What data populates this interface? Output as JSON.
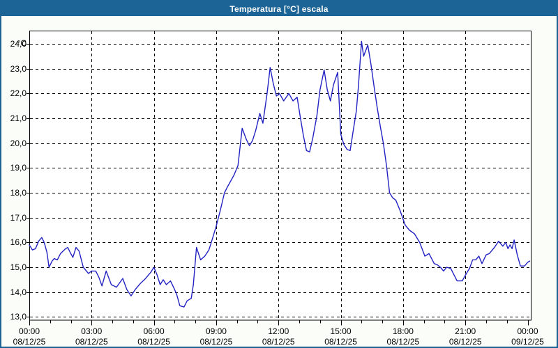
{
  "window": {
    "title": "Temperatura [°C] escala"
  },
  "colors": {
    "titlebar_bg": "#1d6496",
    "titlebar_text": "#ffffff",
    "window_border": "#1d6496",
    "window_bg": "#fbfdf9",
    "plot_bg": "#ffffff",
    "plot_border": "#000000",
    "grid": "#000000",
    "axis_text": "#000000",
    "line": "#2222c3"
  },
  "chart_data": {
    "type": "line",
    "title": "Temperatura [°C] escala",
    "ylabel": "°C",
    "xlabel": "",
    "ylim": [
      13.0,
      24.0
    ],
    "xlim_hours": [
      0,
      24
    ],
    "grid": "dashed",
    "legend": "none",
    "y_ticks": [
      {
        "value": 24.0,
        "label": "24,0"
      },
      {
        "value": 23.0,
        "label": "23,0"
      },
      {
        "value": 22.0,
        "label": "22,0"
      },
      {
        "value": 21.0,
        "label": "21,0"
      },
      {
        "value": 20.0,
        "label": "20,0"
      },
      {
        "value": 19.0,
        "label": "19,0"
      },
      {
        "value": 18.0,
        "label": "18,0"
      },
      {
        "value": 17.0,
        "label": "17,0"
      },
      {
        "value": 16.0,
        "label": "16,0"
      },
      {
        "value": 15.0,
        "label": "15,0"
      },
      {
        "value": 14.0,
        "label": "14,0"
      },
      {
        "value": 13.0,
        "label": "13,0"
      }
    ],
    "x_ticks": [
      {
        "hours": 0,
        "time": "00:00",
        "date": "08/12/25"
      },
      {
        "hours": 3,
        "time": "03:00",
        "date": "08/12/25"
      },
      {
        "hours": 6,
        "time": "06:00",
        "date": "08/12/25"
      },
      {
        "hours": 9,
        "time": "09:00",
        "date": "08/12/25"
      },
      {
        "hours": 12,
        "time": "12:00",
        "date": "08/12/25"
      },
      {
        "hours": 15,
        "time": "15:00",
        "date": "08/12/25"
      },
      {
        "hours": 18,
        "time": "18:00",
        "date": "08/12/25"
      },
      {
        "hours": 21,
        "time": "21:00",
        "date": "08/12/25"
      },
      {
        "hours": 24,
        "time": "00:00",
        "date": "09/12/25"
      }
    ],
    "minor_x_tick_every_hours": 1,
    "series": [
      {
        "name": "Temperatura",
        "unit": "°C",
        "color": "#2222c3",
        "points": [
          [
            0.0,
            15.9
          ],
          [
            0.15,
            15.7
          ],
          [
            0.3,
            15.75
          ],
          [
            0.45,
            16.05
          ],
          [
            0.6,
            16.2
          ],
          [
            0.72,
            16.0
          ],
          [
            0.85,
            15.6
          ],
          [
            0.95,
            15.0
          ],
          [
            1.1,
            15.25
          ],
          [
            1.2,
            15.35
          ],
          [
            1.35,
            15.3
          ],
          [
            1.5,
            15.55
          ],
          [
            1.75,
            15.75
          ],
          [
            1.85,
            15.8
          ],
          [
            2.0,
            15.55
          ],
          [
            2.1,
            15.4
          ],
          [
            2.25,
            15.8
          ],
          [
            2.4,
            15.65
          ],
          [
            2.6,
            15.0
          ],
          [
            2.85,
            14.75
          ],
          [
            3.0,
            14.85
          ],
          [
            3.2,
            14.85
          ],
          [
            3.35,
            14.6
          ],
          [
            3.5,
            14.25
          ],
          [
            3.7,
            14.85
          ],
          [
            3.95,
            14.3
          ],
          [
            4.2,
            14.2
          ],
          [
            4.5,
            14.55
          ],
          [
            4.7,
            14.1
          ],
          [
            4.9,
            13.85
          ],
          [
            5.1,
            14.1
          ],
          [
            5.35,
            14.35
          ],
          [
            5.6,
            14.55
          ],
          [
            5.85,
            14.8
          ],
          [
            6.0,
            15.0
          ],
          [
            6.15,
            14.7
          ],
          [
            6.3,
            14.3
          ],
          [
            6.45,
            14.5
          ],
          [
            6.6,
            14.3
          ],
          [
            6.8,
            14.45
          ],
          [
            7.0,
            14.1
          ],
          [
            7.1,
            13.9
          ],
          [
            7.25,
            13.45
          ],
          [
            7.45,
            13.4
          ],
          [
            7.6,
            13.65
          ],
          [
            7.8,
            13.75
          ],
          [
            7.9,
            14.3
          ],
          [
            7.95,
            14.8
          ],
          [
            8.05,
            15.8
          ],
          [
            8.25,
            15.3
          ],
          [
            8.45,
            15.45
          ],
          [
            8.65,
            15.7
          ],
          [
            8.8,
            16.1
          ],
          [
            9.0,
            16.65
          ],
          [
            9.2,
            17.3
          ],
          [
            9.4,
            18.0
          ],
          [
            9.55,
            18.25
          ],
          [
            9.85,
            18.7
          ],
          [
            10.05,
            19.1
          ],
          [
            10.25,
            20.6
          ],
          [
            10.45,
            20.15
          ],
          [
            10.6,
            19.9
          ],
          [
            10.75,
            20.1
          ],
          [
            10.9,
            20.5
          ],
          [
            11.1,
            21.2
          ],
          [
            11.25,
            20.8
          ],
          [
            11.45,
            22.0
          ],
          [
            11.6,
            23.05
          ],
          [
            11.75,
            22.4
          ],
          [
            11.9,
            21.9
          ],
          [
            12.05,
            22.0
          ],
          [
            12.25,
            21.7
          ],
          [
            12.5,
            22.0
          ],
          [
            12.7,
            21.7
          ],
          [
            12.9,
            21.85
          ],
          [
            13.05,
            21.05
          ],
          [
            13.2,
            20.3
          ],
          [
            13.35,
            19.7
          ],
          [
            13.5,
            19.65
          ],
          [
            13.65,
            20.2
          ],
          [
            13.85,
            21.1
          ],
          [
            14.0,
            22.15
          ],
          [
            14.2,
            22.95
          ],
          [
            14.35,
            22.15
          ],
          [
            14.5,
            21.7
          ],
          [
            14.65,
            22.35
          ],
          [
            14.85,
            22.85
          ],
          [
            15.0,
            20.35
          ],
          [
            15.15,
            19.95
          ],
          [
            15.3,
            19.75
          ],
          [
            15.45,
            19.7
          ],
          [
            15.6,
            20.5
          ],
          [
            15.75,
            21.3
          ],
          [
            15.85,
            22.3
          ],
          [
            16.0,
            24.1
          ],
          [
            16.1,
            23.5
          ],
          [
            16.3,
            23.95
          ],
          [
            16.45,
            23.2
          ],
          [
            16.6,
            22.3
          ],
          [
            16.75,
            21.45
          ],
          [
            16.9,
            20.7
          ],
          [
            17.05,
            20.0
          ],
          [
            17.2,
            19.1
          ],
          [
            17.35,
            18.0
          ],
          [
            17.5,
            17.8
          ],
          [
            17.65,
            17.7
          ],
          [
            17.85,
            17.3
          ],
          [
            18.1,
            16.7
          ],
          [
            18.3,
            16.5
          ],
          [
            18.55,
            16.35
          ],
          [
            18.8,
            16.0
          ],
          [
            19.05,
            15.45
          ],
          [
            19.25,
            15.55
          ],
          [
            19.5,
            15.15
          ],
          [
            19.65,
            15.1
          ],
          [
            19.8,
            15.0
          ],
          [
            19.95,
            14.85
          ],
          [
            20.1,
            15.0
          ],
          [
            20.3,
            14.95
          ],
          [
            20.45,
            14.7
          ],
          [
            20.6,
            14.45
          ],
          [
            20.85,
            14.45
          ],
          [
            21.05,
            14.75
          ],
          [
            21.2,
            14.95
          ],
          [
            21.35,
            15.3
          ],
          [
            21.5,
            15.3
          ],
          [
            21.65,
            15.45
          ],
          [
            21.8,
            15.15
          ],
          [
            22.0,
            15.5
          ],
          [
            22.15,
            15.55
          ],
          [
            22.4,
            15.8
          ],
          [
            22.6,
            16.05
          ],
          [
            22.8,
            15.85
          ],
          [
            22.95,
            16.0
          ],
          [
            23.05,
            15.75
          ],
          [
            23.15,
            15.9
          ],
          [
            23.25,
            15.75
          ],
          [
            23.35,
            16.1
          ],
          [
            23.5,
            15.5
          ],
          [
            23.65,
            15.05
          ],
          [
            23.85,
            15.05
          ],
          [
            24.0,
            15.2
          ],
          [
            24.1,
            15.25
          ]
        ]
      }
    ]
  }
}
